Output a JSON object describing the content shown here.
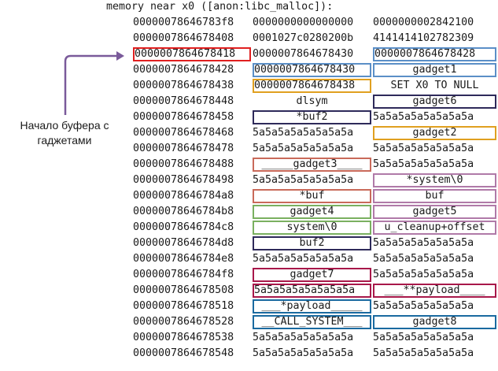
{
  "header": "memory near x0 ([anon:libc_malloc]):",
  "note": [
    "Начало буфера с",
    "гаджетами"
  ],
  "colors": {
    "red": "#e02020",
    "blue": "#5b8fc7",
    "orange": "#e0a020",
    "navy": "#2e2a5a",
    "salmon": "#c96a5a",
    "lavender": "#b07aa8",
    "green": "#7ab060",
    "crimson": "#a8184a",
    "teal": "#1a6aa0",
    "arrow": "#7a5a9a"
  },
  "rows": [
    {
      "addr": "00000078646783f8",
      "c1": "0000000000000000",
      "c2": "0000000002842100"
    },
    {
      "addr": "0000007864678408",
      "c1": "0001027c0280200b",
      "c2": "4141414102782309"
    },
    {
      "addr": "0000007864678418",
      "c1": "0000007864678430",
      "c2": "0000007864678428",
      "box0": "red",
      "box2": "blue"
    },
    {
      "addr": "0000007864678428",
      "c1": "0000007864678430",
      "c2": "gadget1",
      "box1": "blue",
      "box2": "blue",
      "center2": true
    },
    {
      "addr": "0000007864678438",
      "c1": "0000007864678438",
      "c2": "SET X0 TO NULL",
      "box1": "orange",
      "center2": true
    },
    {
      "addr": "0000007864678448",
      "c1": "dlsym",
      "c2": "gadget6",
      "center1": true,
      "box2": "navy",
      "center2": true
    },
    {
      "addr": "0000007864678458",
      "c1": "*buf2",
      "c2": "5a5a5a5a5a5a5a5a",
      "box1": "navy",
      "center1": true
    },
    {
      "addr": "0000007864678468",
      "c1": "5a5a5a5a5a5a5a5a",
      "c2": "gadget2",
      "box2": "orange",
      "center2": true
    },
    {
      "addr": "0000007864678478",
      "c1": "5a5a5a5a5a5a5a5a",
      "c2": "5a5a5a5a5a5a5a5a"
    },
    {
      "addr": "0000007864678488",
      "c1": "_____gadget3____",
      "c2": "5a5a5a5a5a5a5a5a",
      "box1": "salmon",
      "center1": true
    },
    {
      "addr": "0000007864678498",
      "c1": "5a5a5a5a5a5a5a5a",
      "c2": "*system\\0",
      "box2": "lavender",
      "center2": true
    },
    {
      "addr": "00000078646784a8",
      "c1": "*buf",
      "c2": "buf",
      "box1": "salmon",
      "center1": true,
      "box2": "lavender",
      "center2": true
    },
    {
      "addr": "00000078646784b8",
      "c1": "gadget4",
      "c2": "gadget5",
      "box1": "green",
      "center1": true,
      "box2": "lavender",
      "center2": true
    },
    {
      "addr": "00000078646784c8",
      "c1": "system\\0",
      "c2": "u_cleanup+offset",
      "box1": "green",
      "center1": true,
      "box2": "lavender",
      "center2": true
    },
    {
      "addr": "00000078646784d8",
      "c1": "buf2",
      "c2": "5a5a5a5a5a5a5a5a",
      "box1": "navy",
      "center1": true
    },
    {
      "addr": "00000078646784e8",
      "c1": "5a5a5a5a5a5a5a5a",
      "c2": "5a5a5a5a5a5a5a5a"
    },
    {
      "addr": "00000078646784f8",
      "c1": "gadget7",
      "c2": "5a5a5a5a5a5a5a5a",
      "box1": "crimson",
      "center1": true
    },
    {
      "addr": "0000007864678508",
      "c1": "5a5a5a5a5a5a5a5a",
      "c2": "___**payload____",
      "box1": "crimson",
      "box2": "crimson",
      "center2": true
    },
    {
      "addr": "0000007864678518",
      "c1": "___*payload_____",
      "c2": "5a5a5a5a5a5a5a5a",
      "box1": "teal",
      "center1": true
    },
    {
      "addr": "0000007864678528",
      "c1": "__CALL_SYSTEM___",
      "c2": "gadget8",
      "box1": "teal",
      "center1": true,
      "box2": "teal",
      "center2": true
    },
    {
      "addr": "0000007864678538",
      "c1": "5a5a5a5a5a5a5a5a",
      "c2": "5a5a5a5a5a5a5a5a"
    },
    {
      "addr": "0000007864678548",
      "c1": "5a5a5a5a5a5a5a5a",
      "c2": "5a5a5a5a5a5a5a5a"
    }
  ]
}
